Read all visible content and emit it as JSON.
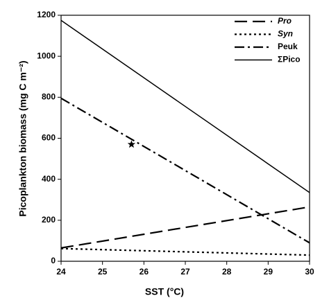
{
  "chart_data": {
    "type": "line",
    "x_label": "SST (°C)",
    "y_label": "Picoplankton biomass (mg C m⁻²)",
    "x": [
      24,
      30
    ],
    "series": [
      {
        "name": "Pro",
        "color": "#000000",
        "dash": "18,8",
        "italic": true,
        "values": [
          65,
          265
        ]
      },
      {
        "name": "Syn",
        "color": "#000000",
        "dash": "3,4",
        "italic": true,
        "values": [
          62,
          30
        ]
      },
      {
        "name": "Peuk",
        "color": "#000000",
        "dash": "14,5,3,5",
        "italic": false,
        "values": [
          795,
          90
        ]
      },
      {
        "name": "ΣPico",
        "color": "#000000",
        "dash": "none",
        "italic": false,
        "values": [
          1175,
          335
        ]
      }
    ],
    "marker": {
      "x": 25.7,
      "y": 570,
      "symbol": "star"
    },
    "xlim": [
      24,
      30
    ],
    "xticks": [
      24,
      25,
      26,
      27,
      28,
      29,
      30
    ],
    "ylim": [
      0,
      1200
    ],
    "yticks": [
      0,
      200,
      400,
      600,
      800,
      1000,
      1200
    ],
    "legend": "upper right",
    "grid": false
  }
}
